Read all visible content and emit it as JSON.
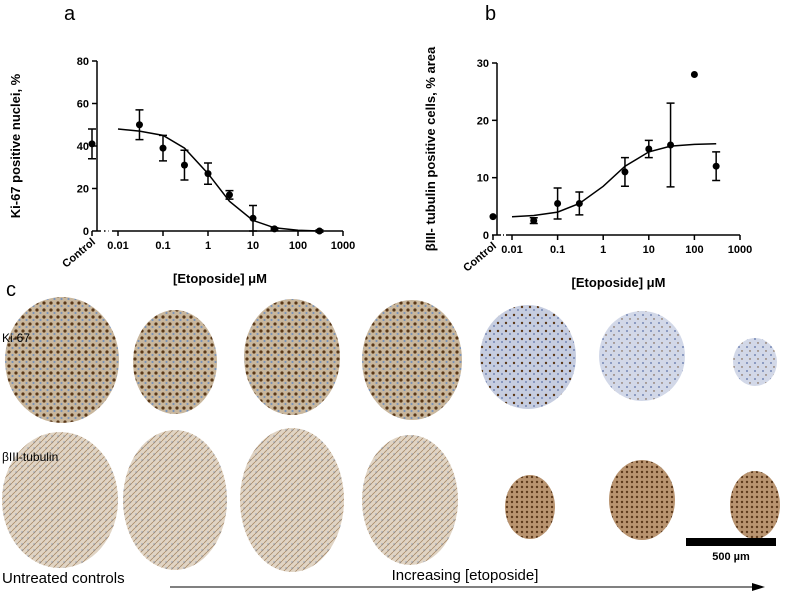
{
  "chart_data": [
    {
      "type": "scatter",
      "panel": "a",
      "ylabel": "Ki-67 positive nuclei, %",
      "xlabel": "[Etoposide] μM",
      "log_x": true,
      "xlim": [
        0.01,
        1000
      ],
      "xticks": [
        0.01,
        0.1,
        1,
        10,
        100,
        1000
      ],
      "ylim": [
        0,
        80
      ],
      "yticks": [
        0,
        20,
        40,
        60,
        80
      ],
      "control": {
        "label": "Control",
        "value": 41,
        "error": 7
      },
      "x": [
        0.03,
        0.1,
        0.3,
        1,
        3,
        10,
        30,
        300
      ],
      "values": [
        50,
        39,
        31,
        27,
        17,
        6,
        1,
        0
      ],
      "errors": [
        7,
        6,
        7,
        5,
        2,
        6,
        0.5,
        0.5
      ],
      "fit": {
        "x": [
          0.01,
          0.03,
          0.1,
          0.3,
          1,
          3,
          10,
          30,
          100,
          300
        ],
        "values": [
          48,
          47,
          45,
          39,
          27,
          14,
          5,
          1.5,
          0.4,
          0
        ]
      },
      "color": "#000000"
    },
    {
      "type": "scatter",
      "panel": "b",
      "ylabel": "βIII- tubulin positive cells, % area",
      "xlabel": "[Etoposide] μM",
      "log_x": true,
      "xlim": [
        0.01,
        1000
      ],
      "xticks": [
        0.01,
        0.1,
        1,
        10,
        100,
        1000
      ],
      "ylim": [
        0,
        30
      ],
      "yticks": [
        0,
        10,
        20,
        30
      ],
      "control": {
        "label": "Control",
        "value": 3.2,
        "error": null
      },
      "x": [
        0.03,
        0.1,
        0.3,
        3,
        10,
        30,
        100,
        300
      ],
      "values": [
        2.5,
        5.5,
        5.5,
        11,
        15,
        15.7,
        28,
        12
      ],
      "errors": [
        0.5,
        2.7,
        2,
        2.5,
        1.5,
        7.3,
        null,
        2.5
      ],
      "fit": {
        "x": [
          0.01,
          0.03,
          0.1,
          0.3,
          1,
          3,
          10,
          30,
          100,
          300
        ],
        "values": [
          3.2,
          3.4,
          4,
          5.5,
          8.5,
          12,
          14.5,
          15.5,
          15.8,
          15.9
        ]
      },
      "color": "#000000"
    }
  ],
  "panel_c": {
    "panel": "c",
    "row_labels": [
      "Ki-67",
      "βIII-tubulin"
    ],
    "scale_bar": "500 µm",
    "left_caption": "Untreated controls",
    "arrow_caption": "Increasing [etoposide]"
  }
}
